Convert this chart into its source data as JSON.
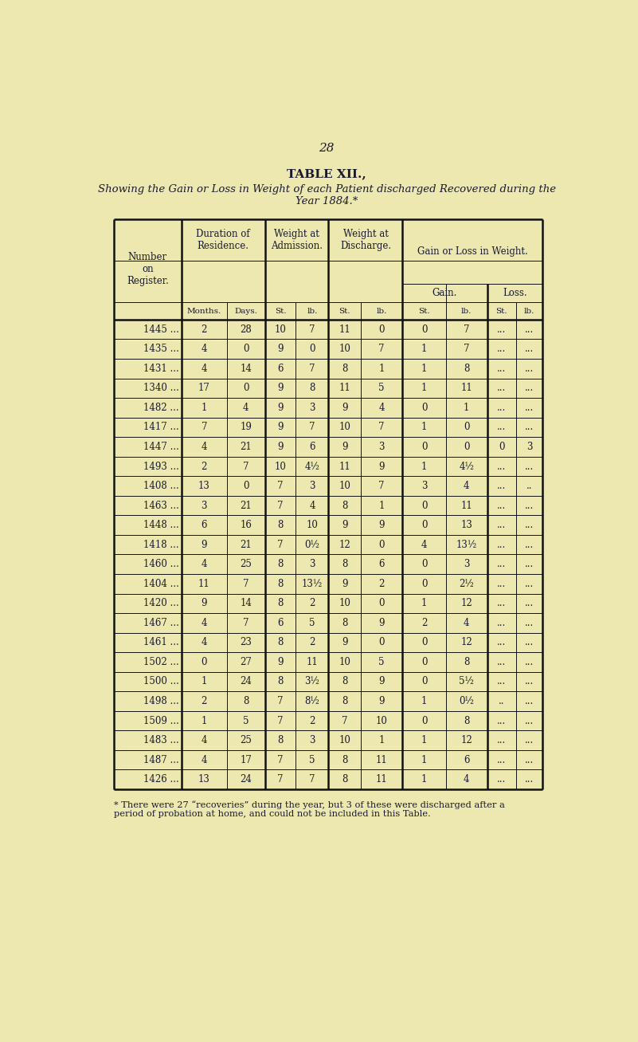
{
  "page_number": "28",
  "title": "TABLE XII.,",
  "subtitle": "Showing the Gain or Loss in Weight of each Patient discharged Recovered during the\nYear 1884.*",
  "footnote": "* There were 27 “recoveries” during the year, but 3 of these were discharged after a\nperiod of probation at home, and could not be included in this Table.",
  "bg_color": "#EDE8B0",
  "text_color": "#1a1a2e",
  "rows": [
    [
      "1445 ...",
      "2",
      "28",
      "10",
      "7",
      "11",
      "0",
      "0",
      "7",
      "...",
      "..."
    ],
    [
      "1435 ...",
      "4",
      "0",
      "9",
      "0",
      "10",
      "7",
      "1",
      "7",
      "...",
      "..."
    ],
    [
      "1431 ...",
      "4",
      "14",
      "6",
      "7",
      "8",
      "1",
      "1",
      "8",
      "...",
      "..."
    ],
    [
      "1340 ...",
      "17",
      "0",
      "9",
      "8",
      "11",
      "5",
      "1",
      "11",
      "...",
      "..."
    ],
    [
      "1482 ...",
      "1",
      "4",
      "9",
      "3",
      "9",
      "4",
      "0",
      "1",
      "...",
      "..."
    ],
    [
      "1417 ...",
      "7",
      "19",
      "9",
      "7",
      "10",
      "7",
      "1",
      "0",
      "...",
      "..."
    ],
    [
      "1447 ...",
      "4",
      "21",
      "9",
      "6",
      "9",
      "3",
      "0",
      "0",
      "0",
      "3"
    ],
    [
      "1493 ...",
      "2",
      "7",
      "10",
      "4½",
      "11",
      "9",
      "1",
      "4½",
      "...",
      "..."
    ],
    [
      "1408 ...",
      "13",
      "0",
      "7",
      "3",
      "10",
      "7",
      "3",
      "4",
      "...",
      ".."
    ],
    [
      "1463 ...",
      "3",
      "21",
      "7",
      "4",
      "8",
      "1",
      "0",
      "11",
      "...",
      "..."
    ],
    [
      "1448 ...",
      "6",
      "16",
      "8",
      "10",
      "9",
      "9",
      "0",
      "13",
      "...",
      "..."
    ],
    [
      "1418 ...",
      "9",
      "21",
      "7",
      "0½",
      "12",
      "0",
      "4",
      "13½",
      "...",
      "..."
    ],
    [
      "1460 ...",
      "4",
      "25",
      "8",
      "3",
      "8",
      "6",
      "0",
      "3",
      "...",
      "..."
    ],
    [
      "1404 ...",
      "11",
      "7",
      "8",
      "13½",
      "9",
      "2",
      "0",
      "2½",
      "...",
      "..."
    ],
    [
      "1420 ...",
      "9",
      "14",
      "8",
      "2",
      "10",
      "0",
      "1",
      "12",
      "...",
      "..."
    ],
    [
      "1467 ...",
      "4",
      "7",
      "6",
      "5",
      "8",
      "9",
      "2",
      "4",
      "...",
      "..."
    ],
    [
      "1461 ...",
      "4",
      "23",
      "8",
      "2",
      "9",
      "0",
      "0",
      "12",
      "...",
      "..."
    ],
    [
      "1502 ...",
      "0",
      "27",
      "9",
      "11",
      "10",
      "5",
      "0",
      "8",
      "...",
      "..."
    ],
    [
      "1500 ...",
      "1",
      "24",
      "8",
      "3½",
      "8",
      "9",
      "0",
      "5½",
      "...",
      "..."
    ],
    [
      "1498 ...",
      "2",
      "8",
      "7",
      "8½",
      "8",
      "9",
      "1",
      "0½",
      "..",
      "..."
    ],
    [
      "1509 ...",
      "1",
      "5",
      "7",
      "2",
      "7",
      "10",
      "0",
      "8",
      "...",
      "..."
    ],
    [
      "1483 ...",
      "4",
      "25",
      "8",
      "3",
      "10",
      "1",
      "1",
      "12",
      "...",
      "..."
    ],
    [
      "1487 ...",
      "4",
      "17",
      "7",
      "5",
      "8",
      "11",
      "1",
      "6",
      "...",
      "..."
    ],
    [
      "1426 ...",
      "13",
      "24",
      "7",
      "7",
      "8",
      "11",
      "1",
      "4",
      "...",
      "..."
    ]
  ]
}
